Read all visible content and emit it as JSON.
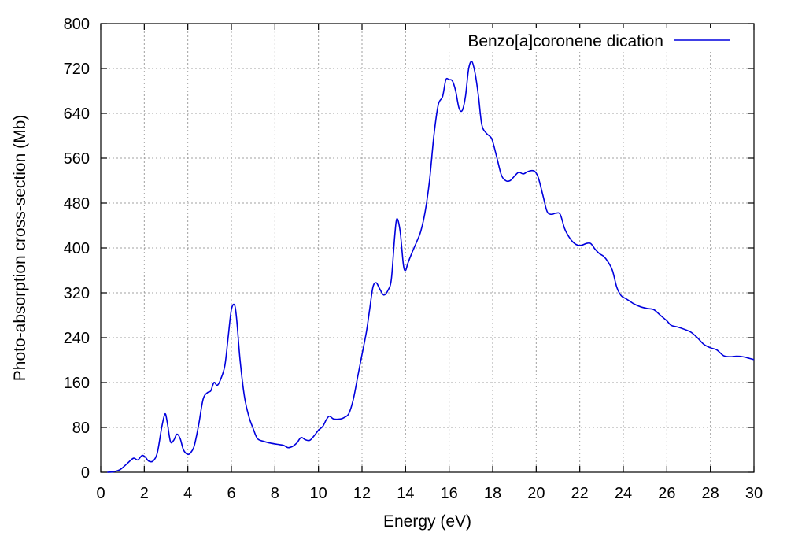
{
  "chart_data": {
    "type": "line",
    "title": "",
    "xlabel": "Energy (eV)",
    "ylabel": "Photo-absorption cross-section (Mb)",
    "xlim": [
      0,
      30
    ],
    "ylim": [
      0,
      800
    ],
    "xticks": [
      0,
      2,
      4,
      6,
      8,
      10,
      12,
      14,
      16,
      18,
      20,
      22,
      24,
      26,
      28,
      30
    ],
    "yticks": [
      0,
      80,
      160,
      240,
      320,
      400,
      480,
      560,
      640,
      720,
      800
    ],
    "grid": true,
    "legend_position": "top-right",
    "series": [
      {
        "name": "Benzo[a]coronene dication",
        "color": "#0000dd",
        "x": [
          0.3,
          0.6,
          0.9,
          1.2,
          1.5,
          1.7,
          1.9,
          2.05,
          2.2,
          2.4,
          2.6,
          2.8,
          2.95,
          3.05,
          3.2,
          3.35,
          3.5,
          3.65,
          3.8,
          4.0,
          4.15,
          4.3,
          4.5,
          4.7,
          4.9,
          5.05,
          5.2,
          5.35,
          5.5,
          5.7,
          5.85,
          6.0,
          6.15,
          6.25,
          6.4,
          6.6,
          6.8,
          7.0,
          7.2,
          7.5,
          7.8,
          8.1,
          8.4,
          8.6,
          8.8,
          9.0,
          9.2,
          9.4,
          9.6,
          9.8,
          10.0,
          10.2,
          10.35,
          10.5,
          10.7,
          11.0,
          11.2,
          11.4,
          11.6,
          11.8,
          12.0,
          12.2,
          12.35,
          12.5,
          12.65,
          12.8,
          13.0,
          13.2,
          13.35,
          13.5,
          13.6,
          13.75,
          13.9,
          14.0,
          14.1,
          14.3,
          14.5,
          14.7,
          14.9,
          15.1,
          15.3,
          15.5,
          15.7,
          15.85,
          16.0,
          16.15,
          16.3,
          16.45,
          16.6,
          16.75,
          16.9,
          17.05,
          17.2,
          17.35,
          17.5,
          17.7,
          17.9,
          18.0,
          18.2,
          18.4,
          18.6,
          18.8,
          19.0,
          19.2,
          19.4,
          19.6,
          19.8,
          19.95,
          20.1,
          20.3,
          20.5,
          20.7,
          20.9,
          21.1,
          21.3,
          21.5,
          21.7,
          21.9,
          22.1,
          22.3,
          22.5,
          22.7,
          22.9,
          23.1,
          23.3,
          23.5,
          23.7,
          23.9,
          24.1,
          24.3,
          24.5,
          24.8,
          25.1,
          25.4,
          25.7,
          26.0,
          26.2,
          26.5,
          26.8,
          27.1,
          27.4,
          27.7,
          28.0,
          28.3,
          28.6,
          28.9,
          29.2,
          29.5,
          29.8,
          30.0
        ],
        "y": [
          0,
          1,
          5,
          15,
          25,
          22,
          30,
          27,
          20,
          20,
          35,
          80,
          104,
          90,
          55,
          57,
          68,
          60,
          40,
          32,
          36,
          48,
          85,
          130,
          142,
          145,
          160,
          155,
          165,
          190,
          240,
          290,
          298,
          270,
          200,
          135,
          100,
          78,
          60,
          55,
          52,
          50,
          48,
          44,
          46,
          52,
          62,
          58,
          57,
          65,
          75,
          82,
          93,
          100,
          95,
          95,
          98,
          105,
          130,
          170,
          210,
          250,
          290,
          330,
          338,
          328,
          316,
          325,
          345,
          420,
          452,
          430,
          370,
          360,
          372,
          392,
          410,
          430,
          465,
          520,
          600,
          655,
          670,
          700,
          700,
          698,
          680,
          650,
          645,
          670,
          720,
          732,
          710,
          670,
          620,
          605,
          598,
          590,
          560,
          530,
          520,
          520,
          528,
          535,
          532,
          536,
          538,
          536,
          525,
          495,
          465,
          460,
          462,
          460,
          435,
          420,
          410,
          405,
          405,
          408,
          408,
          398,
          390,
          385,
          375,
          360,
          330,
          315,
          310,
          305,
          300,
          295,
          292,
          290,
          280,
          270,
          262,
          259,
          255,
          250,
          240,
          228,
          222,
          218,
          208,
          206,
          207,
          206,
          203,
          201
        ]
      }
    ]
  }
}
